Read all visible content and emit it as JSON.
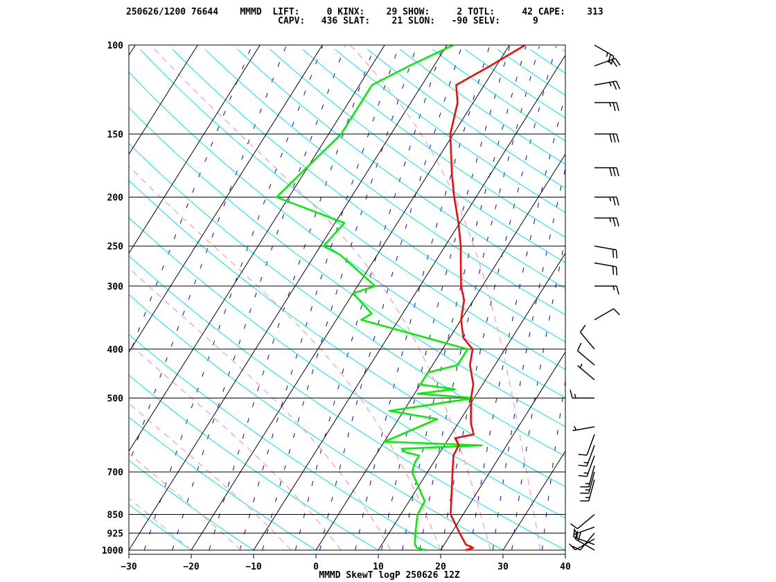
{
  "header": {
    "line1": "250626/1200 76644    MMMD  LIFT:     0 KINX:    29 SHOW:     2 TOTL:     42 CAPE:    313",
    "line2": "                            CAPV:   436 SLAT:    21 SLON:   -90 SELV:      9"
  },
  "footer": "MMMD SkewT logP 250626 12Z",
  "chart_data": {
    "type": "skewt",
    "title": "MMMD SkewT logP 250626 12Z",
    "station": "MMMD",
    "station_id": "76644",
    "datetime": "250626/1200",
    "indices": {
      "LIFT": 0,
      "KINX": 29,
      "SHOW": 2,
      "TOTL": 42,
      "CAPE": 313,
      "CAPV": 436,
      "SLAT": 21,
      "SLON": -90,
      "SELV": 9
    },
    "xlim": [
      -30,
      40
    ],
    "pressure_range": [
      1000,
      100
    ],
    "x_ticks": [
      -30,
      -20,
      -10,
      0,
      10,
      20,
      30,
      40
    ],
    "y_ticks": [
      1000,
      925,
      850,
      700,
      500,
      400,
      300,
      250,
      200,
      150,
      100
    ],
    "y_tick_labels": [
      "1000",
      "925",
      "850",
      "700",
      "500",
      "400",
      "300",
      "250",
      "200",
      "150",
      "100"
    ],
    "x_tick_labels": [
      "−30",
      "−20",
      "−10",
      "0",
      "10",
      "20",
      "30",
      "40"
    ],
    "colors": {
      "temperature": "#ff0000",
      "dewpoint": "#00ee00",
      "dry_adiabat": "#00e5ee",
      "moist_adiabat": "#ffa0b0",
      "mixing_ratio": "#0000cc",
      "isotherm": "#000000",
      "isobar": "#000000"
    },
    "temperature": [
      [
        1000,
        24.0
      ],
      [
        990,
        25.0
      ],
      [
        975,
        23.5
      ],
      [
        925,
        21.3
      ],
      [
        850,
        18.0
      ],
      [
        700,
        14.0
      ],
      [
        650,
        12.5
      ],
      [
        620,
        12.3
      ],
      [
        600,
        11.0
      ],
      [
        590,
        13.6
      ],
      [
        560,
        12.0
      ],
      [
        500,
        9.5
      ],
      [
        470,
        8.5
      ],
      [
        430,
        6.0
      ],
      [
        400,
        4.8
      ],
      [
        380,
        2.2
      ],
      [
        350,
        0.0
      ],
      [
        320,
        -1.5
      ],
      [
        300,
        -3.4
      ],
      [
        270,
        -5.8
      ],
      [
        250,
        -7.5
      ],
      [
        225,
        -10.2
      ],
      [
        200,
        -13.5
      ],
      [
        180,
        -16.2
      ],
      [
        150,
        -20.5
      ],
      [
        130,
        -22.5
      ],
      [
        120,
        -24.5
      ],
      [
        110,
        -21.0
      ],
      [
        100,
        -17.5
      ]
    ],
    "dewpoint": [
      [
        1000,
        17.6
      ],
      [
        990,
        16.0
      ],
      [
        975,
        15.3
      ],
      [
        925,
        14.2
      ],
      [
        850,
        12.7
      ],
      [
        800,
        12.5
      ],
      [
        700,
        7.5
      ],
      [
        670,
        7.0
      ],
      [
        650,
        7.0
      ],
      [
        640,
        4.5
      ],
      [
        630,
        3.5
      ],
      [
        620,
        16.0
      ],
      [
        610,
        0.0
      ],
      [
        585,
        2.5
      ],
      [
        550,
        6.2
      ],
      [
        530,
        -2.3
      ],
      [
        500,
        10.0
      ],
      [
        490,
        0.5
      ],
      [
        480,
        6.0
      ],
      [
        470,
        0.0
      ],
      [
        445,
        0.0
      ],
      [
        430,
        4.0
      ],
      [
        400,
        4.0
      ],
      [
        350,
        -16.0
      ],
      [
        340,
        -15.0
      ],
      [
        330,
        -16.6
      ],
      [
        310,
        -20.0
      ],
      [
        300,
        -17.2
      ],
      [
        260,
        -26.0
      ],
      [
        250,
        -29.5
      ],
      [
        225,
        -28.5
      ],
      [
        200,
        -42.0
      ],
      [
        150,
        -38.0
      ],
      [
        120,
        -38.0
      ],
      [
        110,
        -34.0
      ],
      [
        100,
        -29.0
      ]
    ],
    "wind_barbs": [
      {
        "p": 1000,
        "dir": 300,
        "spd": 20
      },
      {
        "p": 975,
        "dir": 290,
        "spd": 15
      },
      {
        "p": 950,
        "dir": 240,
        "spd": 10
      },
      {
        "p": 925,
        "dir": 220,
        "spd": 10
      },
      {
        "p": 900,
        "dir": 250,
        "spd": 5
      },
      {
        "p": 850,
        "dir": 230,
        "spd": 10
      },
      {
        "p": 725,
        "dir": 195,
        "spd": 15
      },
      {
        "p": 700,
        "dir": 195,
        "spd": 15
      },
      {
        "p": 680,
        "dir": 195,
        "spd": 15
      },
      {
        "p": 650,
        "dir": 200,
        "spd": 15
      },
      {
        "p": 620,
        "dir": 200,
        "spd": 15
      },
      {
        "p": 590,
        "dir": 200,
        "spd": 10
      },
      {
        "p": 570,
        "dir": 260,
        "spd": 5
      },
      {
        "p": 500,
        "dir": 270,
        "spd": 15
      },
      {
        "p": 460,
        "dir": 310,
        "spd": 5
      },
      {
        "p": 430,
        "dir": 310,
        "spd": 10
      },
      {
        "p": 400,
        "dir": 320,
        "spd": 10
      },
      {
        "p": 350,
        "dir": 60,
        "spd": 10
      },
      {
        "p": 300,
        "dir": 90,
        "spd": 15
      },
      {
        "p": 270,
        "dir": 100,
        "spd": 20
      },
      {
        "p": 250,
        "dir": 100,
        "spd": 20
      },
      {
        "p": 220,
        "dir": 90,
        "spd": 25
      },
      {
        "p": 200,
        "dir": 90,
        "spd": 25
      },
      {
        "p": 175,
        "dir": 90,
        "spd": 30
      },
      {
        "p": 150,
        "dir": 90,
        "spd": 30
      },
      {
        "p": 130,
        "dir": 90,
        "spd": 25
      },
      {
        "p": 120,
        "dir": 80,
        "spd": 25
      },
      {
        "p": 110,
        "dir": 70,
        "spd": 25
      },
      {
        "p": 100,
        "dir": 120,
        "spd": 25
      }
    ]
  }
}
